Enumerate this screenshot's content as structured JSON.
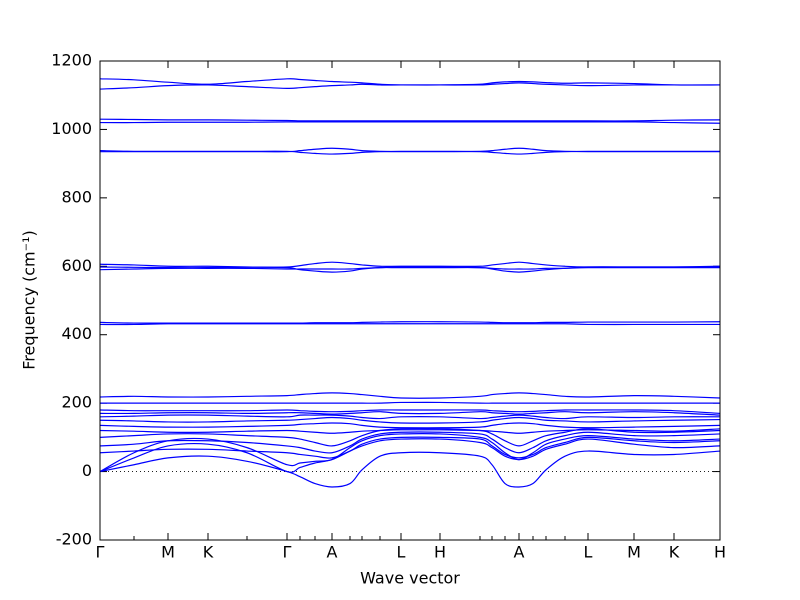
{
  "chart_data": {
    "type": "line",
    "x_label": "Wave vector",
    "y_label": "Frequency (cm⁻¹)",
    "color": "#0000ff",
    "hline": 0,
    "xlim": [
      0,
      620
    ],
    "ylim": [
      -200,
      1200
    ],
    "yticks": [
      -200,
      0,
      200,
      400,
      600,
      800,
      1000,
      1200
    ],
    "xticks": [
      {
        "value": 0,
        "label": "Γ"
      },
      {
        "value": 68,
        "label": "M"
      },
      {
        "value": 108,
        "label": "K"
      },
      {
        "value": 187,
        "label": "Γ"
      },
      {
        "value": 232,
        "label": "A"
      },
      {
        "value": 301,
        "label": "L"
      },
      {
        "value": 340,
        "label": "H"
      },
      {
        "value": 419,
        "label": "A"
      },
      {
        "value": 488,
        "label": "L"
      },
      {
        "value": 534,
        "label": "M"
      },
      {
        "value": 574,
        "label": "K"
      },
      {
        "value": 620,
        "label": "H"
      }
    ],
    "x": [
      0,
      34,
      68,
      108,
      147,
      187,
      200,
      215,
      232,
      250,
      262,
      280,
      301,
      340,
      380,
      392,
      405,
      419,
      433,
      446,
      465,
      488,
      534,
      574,
      620
    ],
    "series": [
      {
        "values": [
          0,
          20,
          40,
          45,
          30,
          0,
          -15,
          -35,
          -45,
          -35,
          5,
          45,
          55,
          55,
          45,
          20,
          -35,
          -45,
          -35,
          5,
          45,
          60,
          50,
          50,
          60
        ]
      },
      {
        "values": [
          0,
          40,
          75,
          80,
          55,
          0,
          12,
          25,
          35,
          60,
          75,
          90,
          95,
          95,
          85,
          70,
          45,
          35,
          45,
          65,
          80,
          95,
          80,
          70,
          75
        ]
      },
      {
        "values": [
          0,
          55,
          90,
          95,
          70,
          20,
          25,
          30,
          35,
          70,
          90,
          105,
          110,
          110,
          100,
          85,
          55,
          35,
          55,
          80,
          95,
          105,
          95,
          90,
          95
        ]
      },
      {
        "values": [
          55,
          60,
          65,
          65,
          60,
          55,
          50,
          45,
          40,
          60,
          80,
          95,
          100,
          100,
          95,
          75,
          50,
          40,
          50,
          70,
          85,
          100,
          90,
          85,
          90
        ]
      },
      {
        "values": [
          75,
          80,
          90,
          90,
          85,
          75,
          70,
          60,
          55,
          75,
          95,
          110,
          115,
          115,
          110,
          95,
          70,
          55,
          70,
          90,
          105,
          115,
          105,
          105,
          110
        ]
      },
      {
        "values": [
          100,
          105,
          110,
          110,
          105,
          100,
          95,
          85,
          75,
          90,
          105,
          120,
          125,
          125,
          120,
          110,
          90,
          75,
          90,
          105,
          115,
          125,
          115,
          115,
          120
        ]
      },
      {
        "values": [
          120,
          118,
          115,
          115,
          118,
          120,
          118,
          115,
          112,
          115,
          118,
          120,
          122,
          122,
          120,
          118,
          115,
          112,
          115,
          118,
          120,
          122,
          120,
          118,
          125
        ]
      },
      {
        "values": [
          135,
          132,
          130,
          130,
          132,
          135,
          138,
          140,
          142,
          140,
          135,
          130,
          128,
          128,
          130,
          135,
          140,
          142,
          140,
          135,
          130,
          128,
          130,
          132,
          135
        ]
      },
      {
        "values": [
          150,
          148,
          145,
          145,
          148,
          150,
          152,
          155,
          158,
          155,
          150,
          145,
          142,
          142,
          145,
          150,
          155,
          158,
          155,
          150,
          148,
          145,
          148,
          150,
          152
        ]
      },
      {
        "values": [
          160,
          162,
          165,
          165,
          162,
          160,
          165,
          165,
          165,
          162,
          158,
          155,
          160,
          160,
          155,
          158,
          162,
          165,
          162,
          158,
          155,
          160,
          158,
          160,
          160
        ]
      },
      {
        "values": [
          170,
          170,
          172,
          172,
          170,
          172,
          172,
          170,
          168,
          170,
          172,
          175,
          170,
          170,
          175,
          172,
          170,
          168,
          170,
          172,
          175,
          172,
          175,
          172,
          165
        ]
      },
      {
        "values": [
          180,
          178,
          178,
          178,
          178,
          180,
          178,
          176,
          175,
          176,
          178,
          180,
          180,
          180,
          180,
          178,
          176,
          175,
          176,
          178,
          180,
          180,
          180,
          178,
          170
        ]
      },
      {
        "values": [
          200,
          200,
          200,
          200,
          200,
          200,
          200,
          200,
          200,
          200,
          200,
          200,
          202,
          202,
          200,
          200,
          200,
          200,
          200,
          200,
          200,
          200,
          200,
          200,
          200
        ]
      },
      {
        "values": [
          218,
          220,
          218,
          218,
          220,
          222,
          225,
          228,
          230,
          228,
          225,
          220,
          215,
          215,
          220,
          225,
          228,
          230,
          228,
          225,
          220,
          218,
          222,
          220,
          215
        ]
      },
      {
        "values": [
          430,
          430,
          432,
          432,
          432,
          432,
          432,
          432,
          432,
          432,
          432,
          432,
          432,
          432,
          432,
          432,
          432,
          432,
          432,
          432,
          432,
          430,
          430,
          430,
          430
        ]
      },
      {
        "values": [
          436,
          434,
          434,
          434,
          434,
          434,
          434,
          435,
          435,
          435,
          436,
          437,
          438,
          438,
          437,
          436,
          435,
          435,
          435,
          436,
          436,
          437,
          437,
          437,
          438
        ]
      },
      {
        "values": [
          590,
          592,
          594,
          594,
          594,
          592,
          592,
          592,
          592,
          592,
          594,
          596,
          598,
          598,
          596,
          594,
          592,
          592,
          592,
          594,
          594,
          596,
          596,
          596,
          596
        ]
      },
      {
        "values": [
          598,
          597,
          596,
          596,
          597,
          598,
          602,
          608,
          612,
          608,
          604,
          600,
          600,
          600,
          600,
          604,
          608,
          612,
          608,
          604,
          600,
          598,
          598,
          598,
          600
        ]
      },
      {
        "values": [
          606,
          604,
          600,
          600,
          598,
          596,
          590,
          586,
          583,
          586,
          592,
          596,
          596,
          596,
          596,
          592,
          586,
          583,
          586,
          590,
          594,
          598,
          598,
          598,
          598
        ]
      },
      {
        "values": [
          935,
          935,
          935,
          935,
          935,
          935,
          938,
          942,
          945,
          942,
          938,
          936,
          935,
          935,
          936,
          938,
          942,
          945,
          942,
          938,
          936,
          935,
          935,
          935,
          935
        ]
      },
      {
        "values": [
          938,
          936,
          936,
          936,
          936,
          936,
          933,
          930,
          928,
          930,
          933,
          935,
          936,
          936,
          935,
          933,
          930,
          928,
          930,
          933,
          935,
          936,
          936,
          936,
          936
        ]
      },
      {
        "values": [
          1020,
          1020,
          1021,
          1021,
          1021,
          1022,
          1022,
          1022,
          1022,
          1022,
          1022,
          1022,
          1022,
          1022,
          1022,
          1022,
          1022,
          1022,
          1022,
          1022,
          1022,
          1022,
          1022,
          1020,
          1018
        ]
      },
      {
        "values": [
          1030,
          1029,
          1028,
          1028,
          1027,
          1026,
          1025,
          1025,
          1025,
          1025,
          1025,
          1025,
          1025,
          1025,
          1025,
          1025,
          1025,
          1025,
          1025,
          1025,
          1025,
          1025,
          1025,
          1027,
          1028
        ]
      },
      {
        "values": [
          1118,
          1122,
          1128,
          1130,
          1125,
          1120,
          1122,
          1125,
          1128,
          1130,
          1132,
          1130,
          1130,
          1130,
          1130,
          1132,
          1134,
          1136,
          1134,
          1132,
          1130,
          1128,
          1130,
          1130,
          1130
        ]
      },
      {
        "values": [
          1148,
          1145,
          1138,
          1132,
          1140,
          1148,
          1146,
          1143,
          1140,
          1138,
          1136,
          1132,
          1130,
          1130,
          1132,
          1136,
          1139,
          1140,
          1139,
          1137,
          1135,
          1136,
          1134,
          1130,
          1130
        ]
      }
    ]
  }
}
